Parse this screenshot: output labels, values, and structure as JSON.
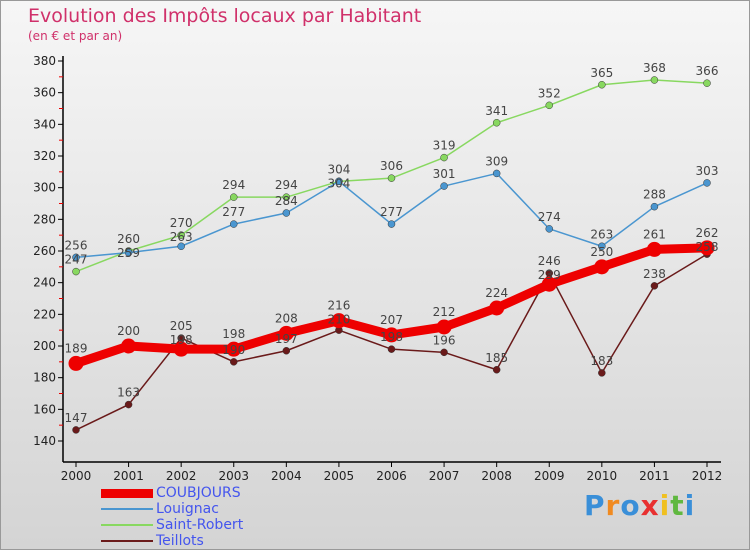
{
  "chart_data": {
    "type": "line",
    "title": "Evolution des Impôts locaux par Habitant",
    "subtitle": "(en € et par an)",
    "x": [
      "2000",
      "2001",
      "2002",
      "2003",
      "2004",
      "2005",
      "2006",
      "2007",
      "2008",
      "2009",
      "2010",
      "2011",
      "2012"
    ],
    "ylim": [
      140,
      380
    ],
    "yticks": [
      140,
      160,
      180,
      200,
      220,
      240,
      260,
      280,
      300,
      320,
      340,
      360,
      380
    ],
    "series": [
      {
        "name": "COUBJOURS",
        "color": "#ee0000",
        "values": [
          189,
          200,
          198,
          198,
          208,
          216,
          207,
          212,
          224,
          239,
          250,
          261,
          262
        ]
      },
      {
        "name": "Louignac",
        "color": "#4a96d0",
        "values": [
          256,
          259,
          263,
          277,
          284,
          304,
          277,
          301,
          309,
          274,
          263,
          288,
          303
        ]
      },
      {
        "name": "Saint-Robert",
        "color": "#88d860",
        "values": [
          247,
          260,
          270,
          294,
          294,
          304,
          306,
          319,
          341,
          352,
          365,
          368,
          366
        ]
      },
      {
        "name": "Teillots",
        "color": "#6a1a1a",
        "values": [
          147,
          163,
          205,
          190,
          197,
          210,
          198,
          196,
          185,
          246,
          183,
          238,
          258
        ]
      }
    ],
    "legend": "bottom-left"
  },
  "logo": "Proxiti"
}
